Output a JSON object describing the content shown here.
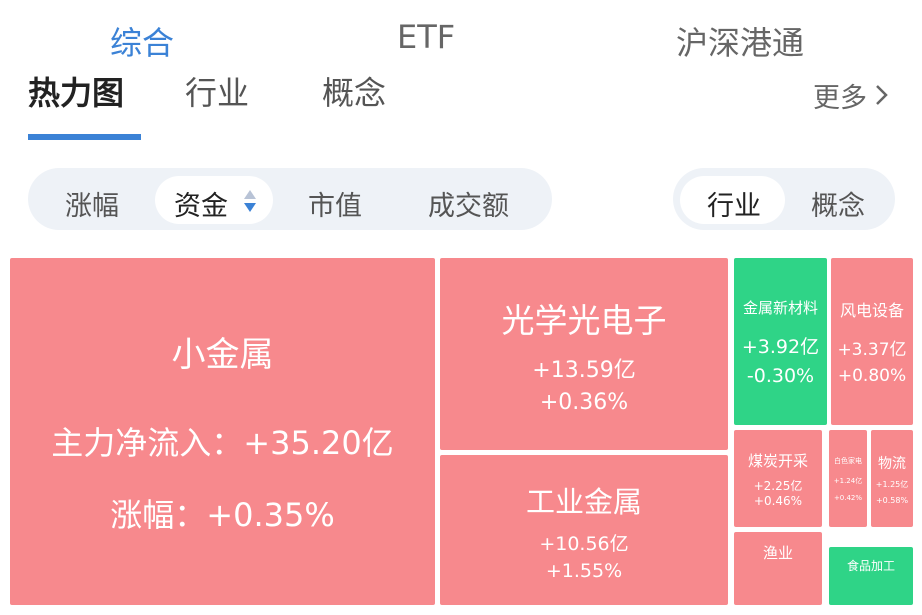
{
  "top_tabs": [
    "综合",
    "ETF",
    "沪深港通"
  ],
  "sub_tabs": [
    "热力图",
    "行业",
    "概念"
  ],
  "more": "更多",
  "metric_filters": [
    "涨幅",
    "资金",
    "市值",
    "成交额"
  ],
  "group_toggle": [
    "行业",
    "概念"
  ],
  "tiles": [
    {
      "name": "小金属",
      "flow_label": "主力净流入：",
      "flow": "+35.20亿",
      "change_label": "涨幅：",
      "change": "+0.35%"
    },
    {
      "name": "光学光电子",
      "flow": "+13.59亿",
      "change": "+0.36%"
    },
    {
      "name": "工业金属",
      "flow": "+10.56亿",
      "change": "+1.55%"
    },
    {
      "name": "金属新材料",
      "flow": "+3.92亿",
      "change": "-0.30%"
    },
    {
      "name": "风电设备",
      "flow": "+3.37亿",
      "change": "+0.80%"
    },
    {
      "name": "煤炭开采",
      "flow": "+2.25亿",
      "change": "+0.46%"
    },
    {
      "name": "白色家电",
      "flow": "+1.24亿",
      "change": "+0.42%"
    },
    {
      "name": "物流",
      "flow": "+1.25亿",
      "change": "+0.58%"
    },
    {
      "name": "渔业"
    },
    {
      "name": "食品加工"
    }
  ]
}
